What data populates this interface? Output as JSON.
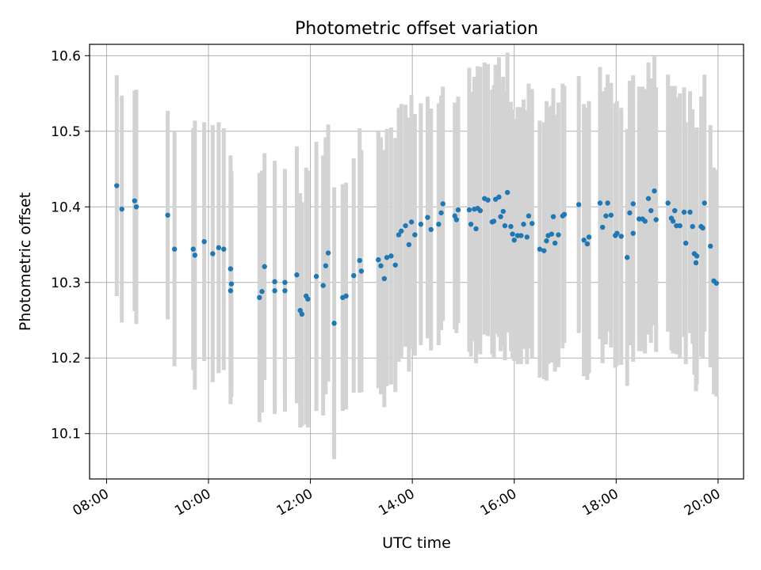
{
  "chart_data": {
    "type": "scatter",
    "title": "Photometric offset variation",
    "xlabel": "UTC time",
    "ylabel": "Photometric offset",
    "x_ticks": [
      "08:00",
      "10:00",
      "12:00",
      "14:00",
      "16:00",
      "18:00",
      "20:00"
    ],
    "y_ticks": [
      "10.1",
      "10.2",
      "10.3",
      "10.4",
      "10.5",
      "10.6"
    ],
    "xlim": [
      "07:40",
      "20:30"
    ],
    "ylim": [
      10.04,
      10.615
    ],
    "grid": true,
    "legend": "none",
    "colors": {
      "points": "#1f77b4",
      "errorbars": "#d3d3d3",
      "grid": "#b0b0b0"
    },
    "series": [
      {
        "points": [
          [
            "08:12",
            10.428,
            0.146
          ],
          [
            "08:18",
            10.397,
            0.15
          ],
          [
            "08:33",
            10.408,
            0.146
          ],
          [
            "08:35",
            10.4,
            0.155
          ],
          [
            "09:12",
            10.389,
            0.138
          ],
          [
            "09:20",
            10.344,
            0.155
          ],
          [
            "09:42",
            10.344,
            0.16
          ],
          [
            "09:44",
            10.336,
            0.178
          ],
          [
            "09:55",
            10.354,
            0.158
          ],
          [
            "10:05",
            10.338,
            0.17
          ],
          [
            "10:12",
            10.346,
            0.166
          ],
          [
            "10:18",
            10.344,
            0.16
          ],
          [
            "10:26",
            10.318,
            0.15
          ],
          [
            "10:27",
            10.298,
            0.15
          ],
          [
            "10:26",
            10.289,
            0.15
          ],
          [
            "11:00",
            10.28,
            0.165
          ],
          [
            "11:03",
            10.288,
            0.16
          ],
          [
            "11:06",
            10.321,
            0.15
          ],
          [
            "11:18",
            10.301,
            0.16
          ],
          [
            "11:18",
            10.289,
            0.163
          ],
          [
            "11:30",
            10.289,
            0.16
          ],
          [
            "11:30",
            10.3,
            0.15
          ],
          [
            "11:44",
            10.31,
            0.17
          ],
          [
            "11:48",
            10.263,
            0.155
          ],
          [
            "11:50",
            10.258,
            0.148
          ],
          [
            "11:55",
            10.282,
            0.17
          ],
          [
            "11:57",
            10.278,
            0.17
          ],
          [
            "12:07",
            10.308,
            0.178
          ],
          [
            "12:15",
            10.296,
            0.172
          ],
          [
            "12:18",
            10.322,
            0.17
          ],
          [
            "12:21",
            10.339,
            0.17
          ],
          [
            "12:28",
            10.246,
            0.18
          ],
          [
            "12:38",
            10.28,
            0.15
          ],
          [
            "12:42",
            10.282,
            0.15
          ],
          [
            "12:51",
            10.309,
            0.155
          ],
          [
            "12:58",
            10.329,
            0.175
          ],
          [
            "13:00",
            10.315,
            0.16
          ],
          [
            "13:20",
            10.33,
            0.17
          ],
          [
            "13:23",
            10.322,
            0.17
          ],
          [
            "13:27",
            10.305,
            0.17
          ],
          [
            "13:30",
            10.333,
            0.17
          ],
          [
            "13:35",
            10.335,
            0.17
          ],
          [
            "13:40",
            10.323,
            0.168
          ],
          [
            "13:44",
            10.363,
            0.168
          ],
          [
            "13:47",
            10.368,
            0.168
          ],
          [
            "13:52",
            10.375,
            0.16
          ],
          [
            "13:56",
            10.35,
            0.168
          ],
          [
            "13:59",
            10.38,
            0.168
          ],
          [
            "14:03",
            10.363,
            0.16
          ],
          [
            "14:10",
            10.377,
            0.16
          ],
          [
            "14:18",
            10.386,
            0.16
          ],
          [
            "14:22",
            10.37,
            0.16
          ],
          [
            "14:31",
            10.377,
            0.16
          ],
          [
            "14:34",
            10.392,
            0.155
          ],
          [
            "14:36",
            10.404,
            0.155
          ],
          [
            "14:50",
            10.388,
            0.15
          ],
          [
            "14:52",
            10.383,
            0.15
          ],
          [
            "14:54",
            10.396,
            0.15
          ],
          [
            "15:07",
            10.396,
            0.188
          ],
          [
            "15:09",
            10.377,
            0.175
          ],
          [
            "15:13",
            10.397,
            0.175
          ],
          [
            "15:15",
            10.371,
            0.178
          ],
          [
            "15:17",
            10.398,
            0.188
          ],
          [
            "15:20",
            10.395,
            0.19
          ],
          [
            "15:25",
            10.411,
            0.18
          ],
          [
            "15:29",
            10.409,
            0.18
          ],
          [
            "15:34",
            10.38,
            0.175
          ],
          [
            "15:36",
            10.381,
            0.18
          ],
          [
            "15:38",
            10.41,
            0.178
          ],
          [
            "15:42",
            10.413,
            0.185
          ],
          [
            "15:44",
            10.387,
            0.178
          ],
          [
            "15:47",
            10.394,
            0.178
          ],
          [
            "15:49",
            10.375,
            0.178
          ],
          [
            "15:52",
            10.419,
            0.185
          ],
          [
            "15:56",
            10.374,
            0.165
          ],
          [
            "15:58",
            10.364,
            0.165
          ],
          [
            "16:00",
            10.356,
            0.16
          ],
          [
            "16:04",
            10.362,
            0.17
          ],
          [
            "16:08",
            10.362,
            0.17
          ],
          [
            "16:11",
            10.377,
            0.165
          ],
          [
            "16:15",
            10.36,
            0.168
          ],
          [
            "16:17",
            10.388,
            0.175
          ],
          [
            "16:21",
            10.378,
            0.178
          ],
          [
            "16:30",
            10.344,
            0.17
          ],
          [
            "16:35",
            10.342,
            0.17
          ],
          [
            "16:38",
            10.355,
            0.185
          ],
          [
            "16:40",
            10.362,
            0.17
          ],
          [
            "16:44",
            10.364,
            0.17
          ],
          [
            "16:46",
            10.387,
            0.17
          ],
          [
            "16:48",
            10.352,
            0.17
          ],
          [
            "16:52",
            10.363,
            0.175
          ],
          [
            "16:57",
            10.388,
            0.175
          ],
          [
            "16:59",
            10.39,
            0.17
          ],
          [
            "17:16",
            10.403,
            0.17
          ],
          [
            "17:22",
            10.356,
            0.18
          ],
          [
            "17:26",
            10.351,
            0.18
          ],
          [
            "17:28",
            10.36,
            0.18
          ],
          [
            "17:41",
            10.405,
            0.18
          ],
          [
            "17:44",
            10.373,
            0.18
          ],
          [
            "17:48",
            10.388,
            0.17
          ],
          [
            "17:50",
            10.405,
            0.17
          ],
          [
            "17:54",
            10.389,
            0.175
          ],
          [
            "17:59",
            10.362,
            0.175
          ],
          [
            "18:01",
            10.365,
            0.175
          ],
          [
            "18:06",
            10.361,
            0.17
          ],
          [
            "18:13",
            10.333,
            0.17
          ],
          [
            "18:16",
            10.392,
            0.175
          ],
          [
            "18:20",
            10.404,
            0.17
          ],
          [
            "18:20",
            10.365,
            0.17
          ],
          [
            "18:27",
            10.384,
            0.175
          ],
          [
            "18:31",
            10.384,
            0.175
          ],
          [
            "18:34",
            10.381,
            0.175
          ],
          [
            "18:38",
            10.411,
            0.18
          ],
          [
            "18:41",
            10.395,
            0.175
          ],
          [
            "18:45",
            10.421,
            0.178
          ],
          [
            "18:47",
            10.383,
            0.175
          ],
          [
            "19:01",
            10.405,
            0.17
          ],
          [
            "19:05",
            10.385,
            0.175
          ],
          [
            "19:07",
            10.381,
            0.175
          ],
          [
            "19:09",
            10.395,
            0.165
          ],
          [
            "19:11",
            10.375,
            0.17
          ],
          [
            "19:15",
            10.375,
            0.175
          ],
          [
            "19:20",
            10.393,
            0.165
          ],
          [
            "19:22",
            10.352,
            0.16
          ],
          [
            "19:27",
            10.393,
            0.16
          ],
          [
            "19:30",
            10.374,
            0.155
          ],
          [
            "19:32",
            10.338,
            0.16
          ],
          [
            "19:34",
            10.326,
            0.17
          ],
          [
            "19:35",
            10.335,
            0.17
          ],
          [
            "19:40",
            10.374,
            0.172
          ],
          [
            "19:42",
            10.372,
            0.172
          ],
          [
            "19:44",
            10.405,
            0.17
          ],
          [
            "19:51",
            10.348,
            0.16
          ],
          [
            "19:55",
            10.302,
            0.15
          ],
          [
            "19:58",
            10.299,
            0.15
          ]
        ]
      }
    ]
  }
}
